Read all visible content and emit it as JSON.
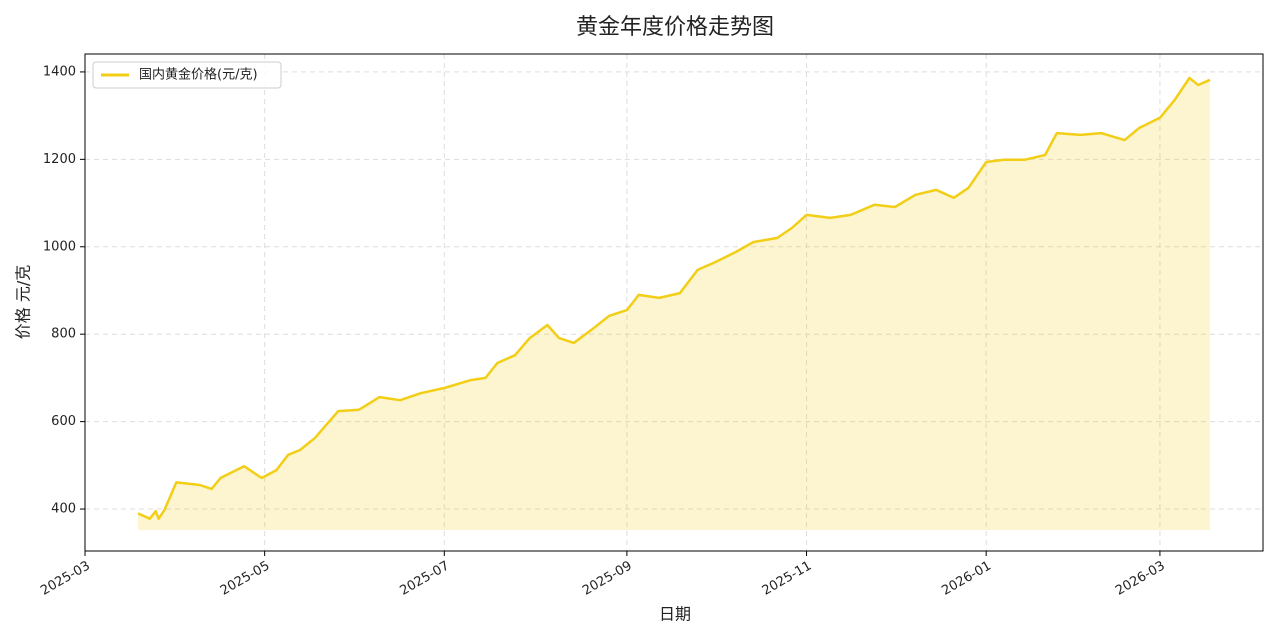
{
  "chart_data": {
    "type": "line",
    "title": "黄金年度价格走势图",
    "xlabel": "日期",
    "ylabel": "价格 元/克",
    "x": [
      "2025-03-19",
      "2025-03-23",
      "2025-03-25",
      "2025-03-26",
      "2025-03-28",
      "2025-04-01",
      "2025-04-09",
      "2025-04-13",
      "2025-04-16",
      "2025-04-24",
      "2025-04-30",
      "2025-05-05",
      "2025-05-09",
      "2025-05-13",
      "2025-05-18",
      "2025-05-26",
      "2025-06-02",
      "2025-06-09",
      "2025-06-16",
      "2025-06-23",
      "2025-07-01",
      "2025-07-10",
      "2025-07-15",
      "2025-07-19",
      "2025-07-25",
      "2025-07-30",
      "2025-08-05",
      "2025-08-09",
      "2025-08-14",
      "2025-08-20",
      "2025-08-26",
      "2025-09-01",
      "2025-09-05",
      "2025-09-12",
      "2025-09-19",
      "2025-09-25",
      "2025-10-01",
      "2025-10-08",
      "2025-10-14",
      "2025-10-22",
      "2025-10-27",
      "2025-11-01",
      "2025-11-09",
      "2025-11-16",
      "2025-11-24",
      "2025-12-01",
      "2025-12-08",
      "2025-12-15",
      "2025-12-21",
      "2025-12-26",
      "2026-01-01",
      "2026-01-07",
      "2026-01-14",
      "2026-01-21",
      "2026-01-25",
      "2026-02-02",
      "2026-02-09",
      "2026-02-17",
      "2026-02-22",
      "2026-03-01",
      "2026-03-06",
      "2026-03-11",
      "2026-03-14",
      "2026-03-18"
    ],
    "series": [
      {
        "name": "国内黄金价格(元/克)",
        "color": "#F2CE16",
        "values": [
          390,
          378,
          395,
          378,
          398,
          461,
          455,
          446,
          471,
          498,
          471,
          489,
          524,
          535,
          562,
          624,
          627,
          656,
          649,
          665,
          677,
          695,
          700,
          734,
          752,
          791,
          821,
          791,
          780,
          810,
          842,
          855,
          890,
          883,
          894,
          947,
          965,
          988,
          1011,
          1020,
          1043,
          1073,
          1066,
          1073,
          1096,
          1091,
          1119,
          1130,
          1112,
          1135,
          1194,
          1199,
          1199,
          1210,
          1260,
          1256,
          1260,
          1244,
          1272,
          1295,
          1336,
          1386,
          1370,
          1382
        ]
      }
    ],
    "area_baseline": 352,
    "xlim": [
      "2025-03-01",
      "2026-04-05"
    ],
    "xticks": [
      "2025-03",
      "2025-05",
      "2025-07",
      "2025-09",
      "2025-11",
      "2026-01",
      "2026-03"
    ],
    "ylim": [
      304,
      1441
    ],
    "yticks": [
      400,
      600,
      800,
      1000,
      1200,
      1400
    ],
    "grid": true,
    "legend": "upper left"
  }
}
